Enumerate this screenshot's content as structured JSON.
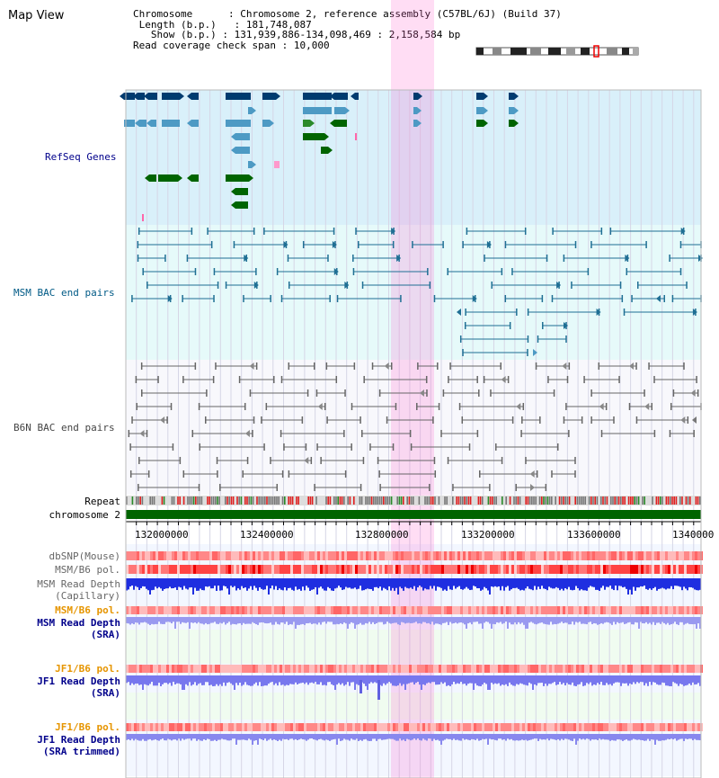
{
  "page": {
    "title": "Map View"
  },
  "info": {
    "chromosome_key": "Chromosome",
    "chromosome_value": "Chromosome 2, reference assembly (C57BL/6J) (Build 37)",
    "length_key": "Length (b.p.)",
    "length_value": "181,748,087",
    "show_key": "Show (b.p.)",
    "show_value": "131,939,886-134,098,469 : 2,158,584 bp",
    "span_key": "Read coverage check span",
    "span_value": "10,000"
  },
  "tracks": {
    "refseq": {
      "label": "RefSeq Genes",
      "color": "#00008b"
    },
    "msm_bac": {
      "label": "MSM BAC end pairs",
      "color": "#005a86"
    },
    "b6n_bac": {
      "label": "B6N BAC end pairs",
      "color": "#444444"
    },
    "repeat": {
      "label": "Repeat"
    },
    "chromosome": {
      "label": "chromosome 2"
    }
  },
  "axis": {
    "ticks": [
      "132000000",
      "132400000",
      "132800000",
      "133200000",
      "133600000",
      "1340000"
    ]
  },
  "lower_tracks": [
    {
      "key": "dbsnp",
      "label": "dbSNP(Mouse)",
      "color": "#666666"
    },
    {
      "key": "msm_pol",
      "label": "MSM/B6 pol.",
      "color": "#666666"
    },
    {
      "key": "msm_depth_cap",
      "label": "MSM Read Depth",
      "label2": "(Capillary)",
      "color": "#666666"
    },
    {
      "key": "msm_pol2",
      "label": "MSM/B6 pol.",
      "color": "#e69500"
    },
    {
      "key": "msm_depth_sra",
      "label": "MSM Read Depth",
      "label2": "(SRA)",
      "color": "#00008b"
    },
    {
      "key": "jf1_pol",
      "label": "JF1/B6 pol.",
      "color": "#e69500"
    },
    {
      "key": "jf1_depth_sra",
      "label": "JF1 Read Depth",
      "label2": "(SRA)",
      "color": "#00008b"
    },
    {
      "key": "jf1_pol2",
      "label": "JF1/B6 pol.",
      "color": "#e69500"
    },
    {
      "key": "jf1_depth_trim",
      "label": "JF1 Read Depth",
      "label2": "(SRA trimmed)",
      "color": "#00008b"
    }
  ]
}
